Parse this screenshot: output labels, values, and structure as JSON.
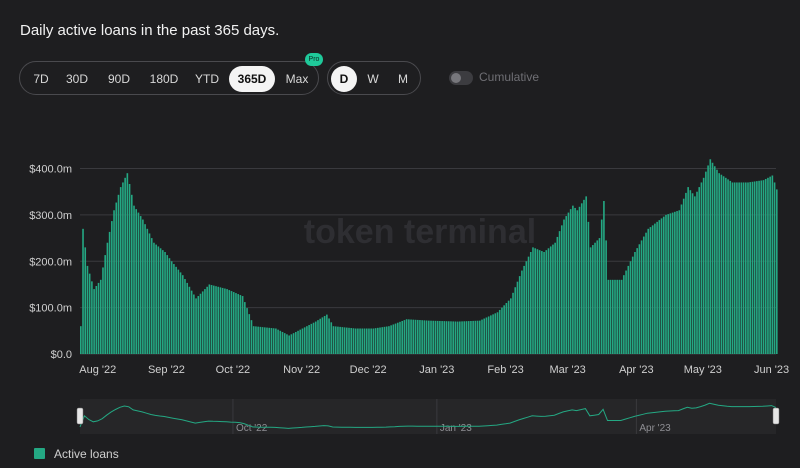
{
  "title": "Daily active loans in the past 365 days.",
  "ranges": [
    {
      "label": "7D",
      "active": false
    },
    {
      "label": "30D",
      "active": false
    },
    {
      "label": "90D",
      "active": false
    },
    {
      "label": "180D",
      "active": false
    },
    {
      "label": "YTD",
      "active": false
    },
    {
      "label": "365D",
      "active": true
    },
    {
      "label": "Max",
      "active": false
    }
  ],
  "pro_badge": "Pro",
  "intervals": [
    {
      "label": "D",
      "active": true
    },
    {
      "label": "W",
      "active": false
    },
    {
      "label": "M",
      "active": false
    }
  ],
  "cumulative_label": "Cumulative",
  "watermark": "token terminal",
  "colors": {
    "bar": "#24a883",
    "grid": "#3a3a3e",
    "accent": "#1fc99a"
  },
  "chart_data": {
    "type": "bar",
    "title": "Daily active loans in the past 365 days.",
    "x_range": [
      "2022-07-24",
      "2023-06-03"
    ],
    "ylim": [
      0,
      440000000
    ],
    "y_ticks": [
      {
        "value": 0,
        "label": "$0.0"
      },
      {
        "value": 100000000,
        "label": "$100.0m"
      },
      {
        "value": 200000000,
        "label": "$200.0m"
      },
      {
        "value": 300000000,
        "label": "$300.0m"
      },
      {
        "value": 400000000,
        "label": "$400.0m"
      }
    ],
    "x_ticks": [
      {
        "date": "2022-08-01",
        "label": "Aug '22"
      },
      {
        "date": "2022-09-01",
        "label": "Sep '22"
      },
      {
        "date": "2022-10-01",
        "label": "Oct '22"
      },
      {
        "date": "2022-11-01",
        "label": "Nov '22"
      },
      {
        "date": "2022-12-01",
        "label": "Dec '22"
      },
      {
        "date": "2023-01-01",
        "label": "Jan '23"
      },
      {
        "date": "2023-02-01",
        "label": "Feb '23"
      },
      {
        "date": "2023-03-01",
        "label": "Mar '23"
      },
      {
        "date": "2023-04-01",
        "label": "Apr '23"
      },
      {
        "date": "2023-05-01",
        "label": "May '23"
      },
      {
        "date": "2023-06-01",
        "label": "Jun '23"
      }
    ],
    "navigator_ticks": [
      {
        "date": "2022-10-01",
        "label": "Oct '22"
      },
      {
        "date": "2023-01-01",
        "label": "Jan '23"
      },
      {
        "date": "2023-04-01",
        "label": "Apr '23"
      }
    ],
    "series": [
      {
        "name": "Active loans",
        "points": [
          [
            "2022-07-24",
            60000000
          ],
          [
            "2022-07-25",
            270000000
          ],
          [
            "2022-07-27",
            190000000
          ],
          [
            "2022-07-30",
            140000000
          ],
          [
            "2022-08-02",
            160000000
          ],
          [
            "2022-08-05",
            240000000
          ],
          [
            "2022-08-08",
            310000000
          ],
          [
            "2022-08-11",
            360000000
          ],
          [
            "2022-08-14",
            390000000
          ],
          [
            "2022-08-17",
            320000000
          ],
          [
            "2022-08-21",
            290000000
          ],
          [
            "2022-08-26",
            240000000
          ],
          [
            "2022-08-31",
            220000000
          ],
          [
            "2022-09-03",
            200000000
          ],
          [
            "2022-09-08",
            170000000
          ],
          [
            "2022-09-14",
            120000000
          ],
          [
            "2022-09-20",
            150000000
          ],
          [
            "2022-09-28",
            140000000
          ],
          [
            "2022-10-05",
            125000000
          ],
          [
            "2022-10-10",
            60000000
          ],
          [
            "2022-10-20",
            55000000
          ],
          [
            "2022-10-26",
            40000000
          ],
          [
            "2022-11-01",
            55000000
          ],
          [
            "2022-11-07",
            70000000
          ],
          [
            "2022-11-12",
            85000000
          ],
          [
            "2022-11-15",
            60000000
          ],
          [
            "2022-11-25",
            55000000
          ],
          [
            "2022-12-03",
            55000000
          ],
          [
            "2022-12-10",
            60000000
          ],
          [
            "2022-12-18",
            75000000
          ],
          [
            "2022-12-28",
            72000000
          ],
          [
            "2023-01-10",
            70000000
          ],
          [
            "2023-01-20",
            72000000
          ],
          [
            "2023-01-28",
            90000000
          ],
          [
            "2023-02-03",
            120000000
          ],
          [
            "2023-02-08",
            180000000
          ],
          [
            "2023-02-13",
            230000000
          ],
          [
            "2023-02-18",
            220000000
          ],
          [
            "2023-02-23",
            240000000
          ],
          [
            "2023-02-27",
            290000000
          ],
          [
            "2023-03-03",
            320000000
          ],
          [
            "2023-03-05",
            310000000
          ],
          [
            "2023-03-09",
            340000000
          ],
          [
            "2023-03-11",
            230000000
          ],
          [
            "2023-03-15",
            250000000
          ],
          [
            "2023-03-17",
            330000000
          ],
          [
            "2023-03-19",
            160000000
          ],
          [
            "2023-03-25",
            160000000
          ],
          [
            "2023-03-31",
            220000000
          ],
          [
            "2023-04-06",
            270000000
          ],
          [
            "2023-04-14",
            300000000
          ],
          [
            "2023-04-20",
            310000000
          ],
          [
            "2023-04-24",
            360000000
          ],
          [
            "2023-04-27",
            340000000
          ],
          [
            "2023-05-01",
            380000000
          ],
          [
            "2023-05-04",
            420000000
          ],
          [
            "2023-05-08",
            390000000
          ],
          [
            "2023-05-14",
            370000000
          ],
          [
            "2023-05-21",
            370000000
          ],
          [
            "2023-05-28",
            375000000
          ],
          [
            "2023-06-01",
            385000000
          ],
          [
            "2023-06-03",
            355000000
          ]
        ]
      }
    ],
    "legend": {
      "position": "bottom-left",
      "entries": [
        "Active loans"
      ]
    },
    "grid": true
  }
}
